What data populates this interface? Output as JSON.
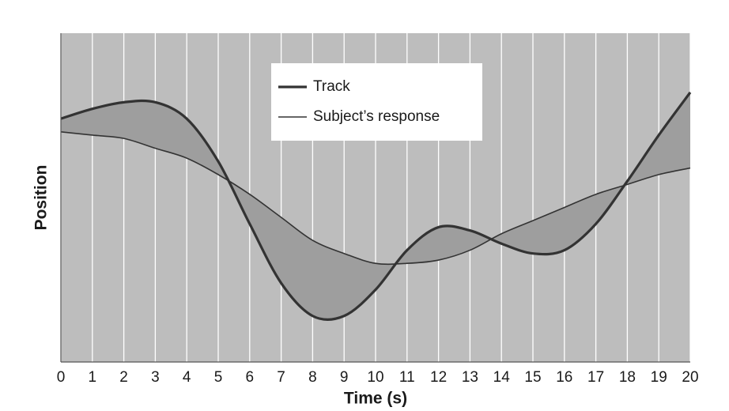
{
  "chart_data": {
    "type": "line",
    "x_label": "Time (s)",
    "y_label": "Position",
    "x": [
      0,
      1,
      2,
      3,
      4,
      5,
      6,
      7,
      8,
      9,
      10,
      11,
      12,
      13,
      14,
      15,
      16,
      17,
      18,
      19,
      20
    ],
    "xlim": [
      0,
      20
    ],
    "xticks": [
      0,
      1,
      2,
      3,
      4,
      5,
      6,
      7,
      8,
      9,
      10,
      11,
      12,
      13,
      14,
      15,
      16,
      17,
      18,
      19,
      20
    ],
    "ylim": [
      0,
      100
    ],
    "grid": true,
    "series": [
      {
        "name": "Track",
        "color": "#333333",
        "line_width": 3.2,
        "values": [
          74,
          77,
          79,
          79,
          74,
          61,
          42,
          24,
          14,
          14,
          22,
          34,
          41,
          40,
          36,
          33,
          34,
          42,
          55,
          69,
          82
        ]
      },
      {
        "name": "Subject’s response",
        "color": "#333333",
        "line_width": 1.6,
        "values": [
          70,
          69,
          68,
          65,
          62,
          57,
          51,
          44,
          37,
          33,
          30,
          30,
          31,
          34,
          39,
          43,
          47,
          51,
          54,
          57,
          59
        ]
      }
    ]
  }
}
